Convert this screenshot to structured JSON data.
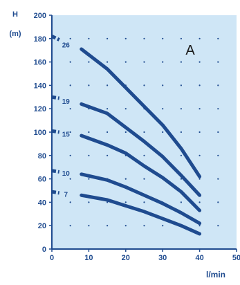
{
  "chart_data": {
    "type": "line",
    "title": "",
    "panel_label": "A",
    "xlabel": "l/min",
    "ylabel": "H",
    "ylabel_unit": "(m)",
    "xlim": [
      0,
      50
    ],
    "ylim": [
      0,
      200
    ],
    "x_ticks": [
      0,
      10,
      20,
      30,
      40,
      50
    ],
    "y_ticks": [
      0,
      20,
      40,
      60,
      80,
      100,
      120,
      140,
      160,
      180,
      200
    ],
    "grid": "dotted",
    "legend": "inline labels at left of curves",
    "colors": {
      "curve": "#1f4b8f",
      "plot_bg": "#cfe6f6",
      "text": "#1f4b8f"
    },
    "series": [
      {
        "name": "26",
        "x": [
          0,
          2,
          8,
          15,
          20,
          25,
          30,
          35,
          40
        ],
        "y": [
          182,
          179,
          171,
          154,
          138,
          122,
          106,
          86,
          62
        ]
      },
      {
        "name": "19",
        "x": [
          0,
          2,
          8,
          15,
          20,
          25,
          30,
          35,
          40
        ],
        "y": [
          130,
          129,
          124,
          116,
          104,
          92,
          79,
          63,
          46
        ]
      },
      {
        "name": "15",
        "x": [
          0,
          2,
          8,
          15,
          20,
          25,
          30,
          35,
          40
        ],
        "y": [
          101,
          100,
          97,
          89,
          82,
          71,
          61,
          49,
          33
        ]
      },
      {
        "name": "10",
        "x": [
          0,
          2,
          8,
          15,
          20,
          25,
          30,
          35,
          40
        ],
        "y": [
          67,
          66,
          64,
          59,
          53,
          46,
          39,
          31,
          22
        ]
      },
      {
        "name": "7",
        "x": [
          0,
          2,
          8,
          15,
          20,
          25,
          30,
          35,
          40
        ],
        "y": [
          49,
          48,
          46,
          42,
          37,
          32,
          26,
          20,
          13
        ]
      }
    ]
  }
}
